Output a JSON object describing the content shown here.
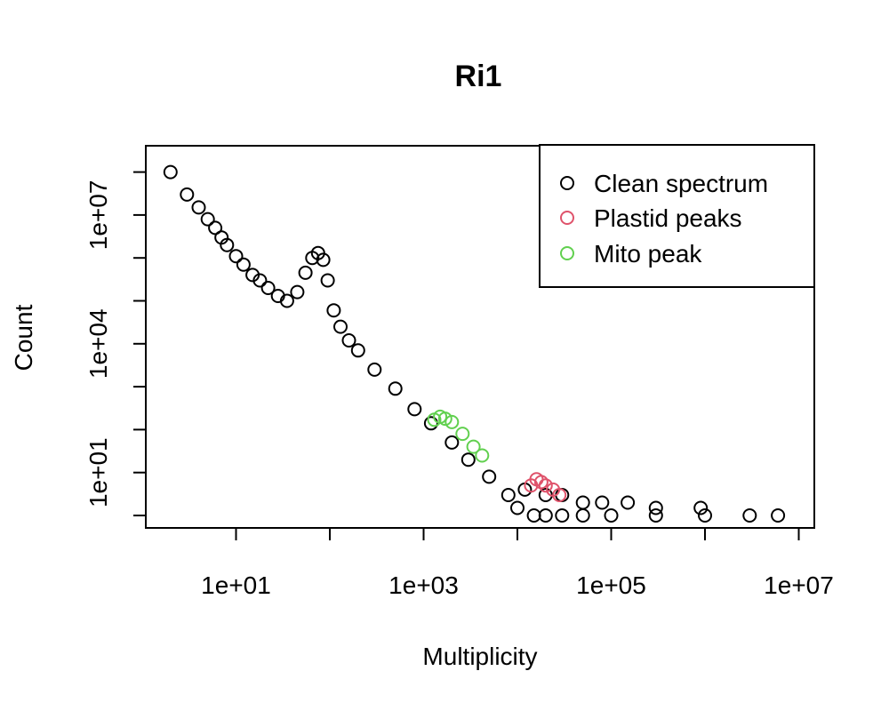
{
  "chart_data": {
    "type": "scatter",
    "title": "Ri1",
    "xlabel": "Multiplicity",
    "ylabel": "Count",
    "x_scale": "log",
    "y_scale": "log",
    "xlim": [
      1,
      10000000
    ],
    "ylim": [
      1,
      100000000
    ],
    "x_ticks": [
      10,
      100,
      1000,
      10000,
      100000,
      1000000,
      10000000
    ],
    "x_tick_labels": [
      "1e+01",
      "",
      "1e+03",
      "",
      "1e+05",
      "",
      "1e+07"
    ],
    "y_ticks": [
      1,
      10,
      100,
      1000,
      10000,
      100000,
      1000000,
      10000000,
      100000000
    ],
    "y_tick_labels": [
      "",
      "1e+01",
      "",
      "",
      "1e+04",
      "",
      "",
      "1e+07",
      ""
    ],
    "legend": {
      "position": "top-right",
      "entries": [
        {
          "label": "Clean spectrum",
          "color": "#000000"
        },
        {
          "label": "Plastid peaks",
          "color": "#DF536B"
        },
        {
          "label": "Mito peak",
          "color": "#61D04F"
        }
      ]
    },
    "series": [
      {
        "name": "Clean spectrum",
        "color": "#000000",
        "points": [
          [
            2,
            100000000
          ],
          [
            3,
            30000000
          ],
          [
            4,
            15000000
          ],
          [
            5,
            8000000
          ],
          [
            6,
            5000000
          ],
          [
            7,
            3000000
          ],
          [
            8,
            2000000
          ],
          [
            10,
            1100000
          ],
          [
            12,
            700000
          ],
          [
            15,
            400000
          ],
          [
            18,
            300000
          ],
          [
            22,
            200000
          ],
          [
            28,
            130000
          ],
          [
            35,
            100000
          ],
          [
            45,
            160000
          ],
          [
            55,
            450000
          ],
          [
            65,
            1000000
          ],
          [
            75,
            1300000
          ],
          [
            85,
            900000
          ],
          [
            95,
            300000
          ],
          [
            110,
            60000
          ],
          [
            130,
            25000
          ],
          [
            160,
            12000
          ],
          [
            200,
            7000
          ],
          [
            300,
            2500
          ],
          [
            500,
            900
          ],
          [
            800,
            300
          ],
          [
            1200,
            140
          ],
          [
            2000,
            50
          ],
          [
            3000,
            20
          ],
          [
            5000,
            8
          ],
          [
            8000,
            3
          ],
          [
            10000,
            1.5
          ],
          [
            15000,
            1
          ],
          [
            20000,
            1
          ],
          [
            30000,
            1
          ],
          [
            50000,
            1
          ],
          [
            100000,
            1
          ],
          [
            300000,
            1
          ],
          [
            1000000,
            1
          ],
          [
            3000000,
            1
          ],
          [
            6000000,
            1
          ],
          [
            12000,
            4
          ],
          [
            20000,
            3
          ],
          [
            30000,
            3
          ],
          [
            50000,
            2
          ],
          [
            80000,
            2
          ],
          [
            150000,
            2
          ],
          [
            300000,
            1.5
          ],
          [
            900000,
            1.5
          ]
        ]
      },
      {
        "name": "Plastid peaks",
        "color": "#DF536B",
        "points": [
          [
            14000,
            5
          ],
          [
            16000,
            7
          ],
          [
            18000,
            6
          ],
          [
            20000,
            5
          ],
          [
            24000,
            4
          ],
          [
            28000,
            3
          ]
        ]
      },
      {
        "name": "Mito peak",
        "color": "#61D04F",
        "points": [
          [
            1300,
            170
          ],
          [
            1500,
            200
          ],
          [
            1700,
            180
          ],
          [
            2000,
            150
          ],
          [
            2600,
            80
          ],
          [
            3400,
            40
          ],
          [
            4200,
            25
          ]
        ]
      }
    ]
  }
}
